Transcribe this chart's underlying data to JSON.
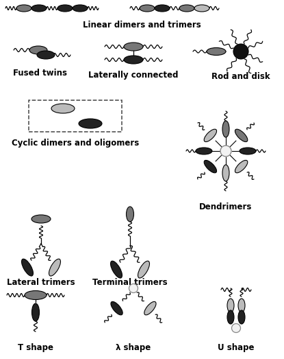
{
  "background_color": "#ffffff",
  "text_color": "#000000",
  "ellipse_colors": {
    "dark": "#222222",
    "medium": "#777777",
    "light": "#bbbbbb",
    "white": "#f2f2f2",
    "black": "#111111"
  },
  "labels": {
    "linear": "Linear dimers and trimers",
    "fused": "Fused twins",
    "lateral": "Laterally connected",
    "rod_disk": "Rod and disk",
    "cyclic": "Cyclic dimers and oligomers",
    "dendrimers": "Dendrimers",
    "lat_trim": "Lateral trimers",
    "term_trim": "Terminal trimers",
    "t_shape": "T shape",
    "lambda_shape": "λ shape",
    "u_shape": "U shape"
  },
  "label_fontsize": 8.5,
  "label_fontweight": "bold"
}
